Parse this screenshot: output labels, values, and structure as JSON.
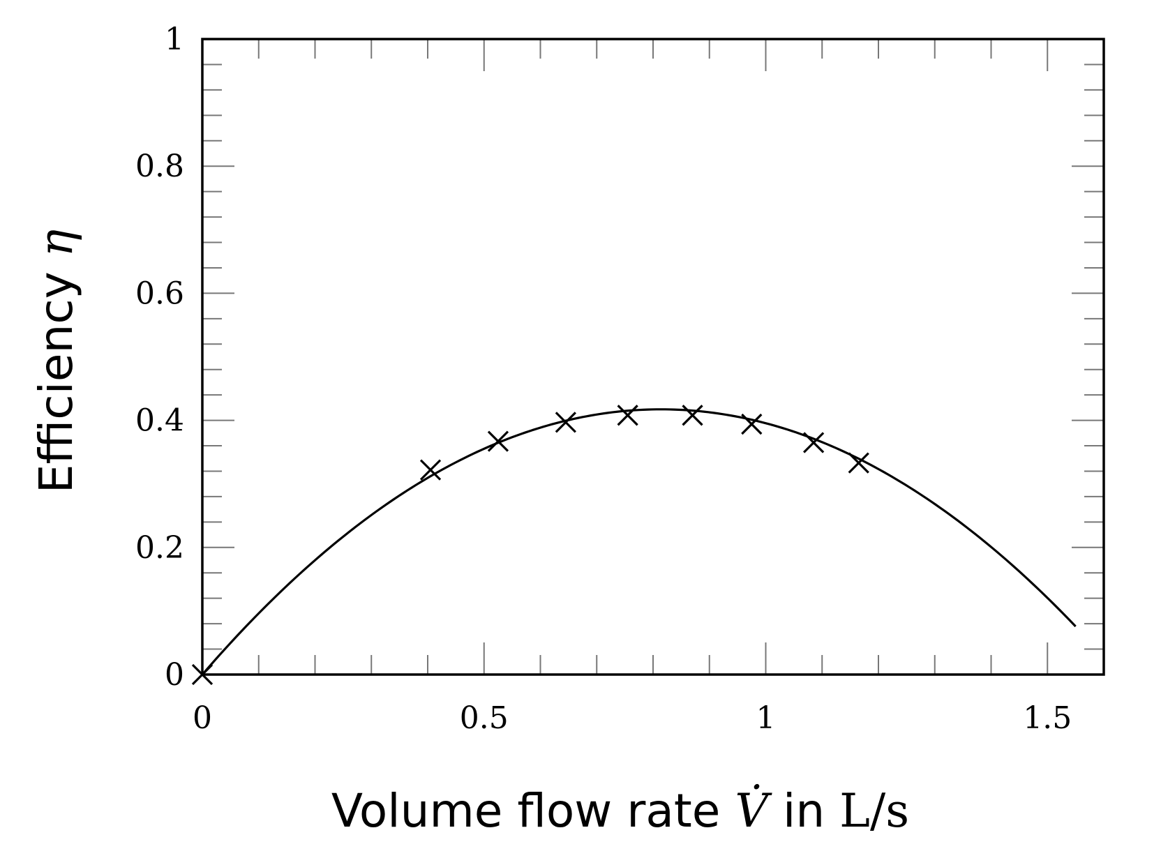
{
  "chart_data": {
    "type": "scatter",
    "title": "",
    "xlabel": {
      "prefix": "Volume flow rate",
      "symbol": "V̇",
      "mid": "in",
      "unit": "L/s"
    },
    "ylabel": {
      "prefix": "Efficiency",
      "symbol": "η"
    },
    "xlim": [
      0,
      1.6
    ],
    "ylim": [
      0,
      1
    ],
    "x_ticks": [
      0,
      0.5,
      1,
      1.5
    ],
    "x_tick_labels": [
      "0",
      "0.5",
      "1",
      "1.5"
    ],
    "y_ticks": [
      0,
      0.2,
      0.4,
      0.6,
      0.8,
      1
    ],
    "y_tick_labels": [
      "0",
      "0.2",
      "0.4",
      "0.6",
      "0.8",
      "1"
    ],
    "x_minor_step": 0.1,
    "y_minor_step": 0.04,
    "grid": false,
    "legend": "none",
    "series": [
      {
        "kind": "markers",
        "marker": "cross",
        "x": [
          0,
          0.405,
          0.525,
          0.645,
          0.755,
          0.87,
          0.975,
          1.085,
          1.165
        ],
        "y": [
          0,
          0.322,
          0.367,
          0.397,
          0.408,
          0.408,
          0.394,
          0.365,
          0.333
        ]
      },
      {
        "kind": "fit-curve",
        "x_range": [
          0,
          1.55
        ],
        "coefficients": [
          0,
          1.0257,
          -0.6302
        ]
      }
    ],
    "colors": {
      "line": "#000000",
      "tick": "#777777"
    }
  }
}
